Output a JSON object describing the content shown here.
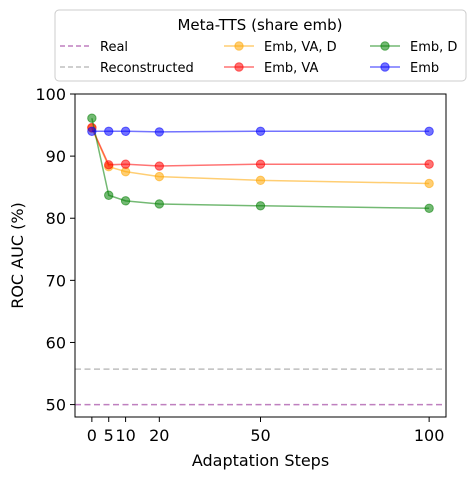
{
  "chart_data": {
    "type": "line",
    "title": "",
    "xlabel": "Adaptation Steps",
    "ylabel": "ROC AUC (%)",
    "xlim": [
      -5,
      105
    ],
    "ylim": [
      48,
      100
    ],
    "xticks": [
      0,
      5,
      10,
      20,
      50,
      100
    ],
    "xtick_labels": [
      "0",
      "5",
      "10",
      "20",
      "50",
      "100"
    ],
    "yticks": [
      50,
      60,
      70,
      80,
      90,
      100
    ],
    "ytick_labels": [
      "50",
      "60",
      "70",
      "80",
      "90",
      "100"
    ],
    "grid": false,
    "legend": {
      "title": "Meta-TTS (share emb)",
      "placement": "above plot",
      "columns": 3
    },
    "baselines": [
      {
        "name": "Real",
        "value": 50.0,
        "color": "#bf7fbf",
        "style": "dashed"
      },
      {
        "name": "Reconstructed",
        "value": 55.7,
        "color": "#bfbfbf",
        "style": "dashed"
      }
    ],
    "x": [
      0,
      5,
      10,
      20,
      50,
      100
    ],
    "series": [
      {
        "name": "Emb, VA, D",
        "color": "#ffa500",
        "values": [
          94.5,
          88.3,
          87.5,
          86.7,
          86.1,
          85.6
        ]
      },
      {
        "name": "Emb, VA",
        "color": "#ff0000",
        "values": [
          94.6,
          88.6,
          88.7,
          88.4,
          88.7,
          88.7
        ]
      },
      {
        "name": "Emb, D",
        "color": "#008000",
        "values": [
          96.1,
          83.7,
          82.8,
          82.3,
          82.0,
          81.6
        ]
      },
      {
        "name": "Emb",
        "color": "#0000ff",
        "values": [
          94.0,
          94.0,
          94.0,
          93.9,
          94.0,
          94.0
        ]
      }
    ],
    "legend_order": [
      "Real",
      "Reconstructed",
      "Emb, VA, D",
      "Emb, VA",
      "Emb, D",
      "Emb"
    ]
  }
}
